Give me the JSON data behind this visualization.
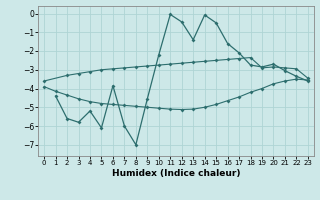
{
  "xlabel": "Humidex (Indice chaleur)",
  "bg_color": "#cde8e8",
  "grid_color": "#afd4d4",
  "line_color": "#2d6e6e",
  "xlim": [
    -0.5,
    23.5
  ],
  "ylim": [
    -7.6,
    0.4
  ],
  "yticks": [
    0,
    -1,
    -2,
    -3,
    -4,
    -5,
    -6,
    -7
  ],
  "xticks": [
    0,
    1,
    2,
    3,
    4,
    5,
    6,
    7,
    8,
    9,
    10,
    11,
    12,
    13,
    14,
    15,
    16,
    17,
    18,
    19,
    20,
    21,
    22,
    23
  ],
  "line1_x": [
    0,
    2,
    3,
    4,
    5,
    6,
    7,
    8,
    9,
    10,
    11,
    12,
    13,
    14,
    15,
    16,
    17,
    18,
    19,
    20,
    21,
    22,
    23
  ],
  "line1_y": [
    -3.6,
    -3.3,
    -3.2,
    -3.1,
    -3.0,
    -2.95,
    -2.9,
    -2.85,
    -2.8,
    -2.75,
    -2.7,
    -2.65,
    -2.6,
    -2.55,
    -2.5,
    -2.45,
    -2.4,
    -2.35,
    -2.9,
    -2.85,
    -2.9,
    -2.95,
    -3.45
  ],
  "line2_x": [
    0,
    1,
    2,
    3,
    4,
    5,
    6,
    7,
    8,
    9,
    10,
    11,
    12,
    13,
    14,
    15,
    16,
    17,
    18,
    19,
    20,
    21,
    22,
    23
  ],
  "line2_y": [
    -3.9,
    -4.15,
    -4.35,
    -4.55,
    -4.7,
    -4.8,
    -4.85,
    -4.9,
    -4.95,
    -5.0,
    -5.05,
    -5.1,
    -5.12,
    -5.1,
    -5.0,
    -4.85,
    -4.65,
    -4.45,
    -4.2,
    -4.0,
    -3.75,
    -3.6,
    -3.5,
    -3.55
  ],
  "line3_x": [
    1,
    2,
    3,
    4,
    5,
    6,
    7,
    8,
    9,
    10,
    11,
    12,
    13,
    14,
    15,
    16,
    17,
    18,
    19,
    20,
    21,
    22,
    23
  ],
  "line3_y": [
    -4.4,
    -5.6,
    -5.8,
    -5.2,
    -6.1,
    -3.85,
    -6.0,
    -7.0,
    -4.55,
    -2.2,
    -0.05,
    -0.45,
    -1.4,
    -0.08,
    -0.5,
    -1.6,
    -2.1,
    -2.75,
    -2.85,
    -2.7,
    -3.05,
    -3.35,
    -3.6
  ]
}
